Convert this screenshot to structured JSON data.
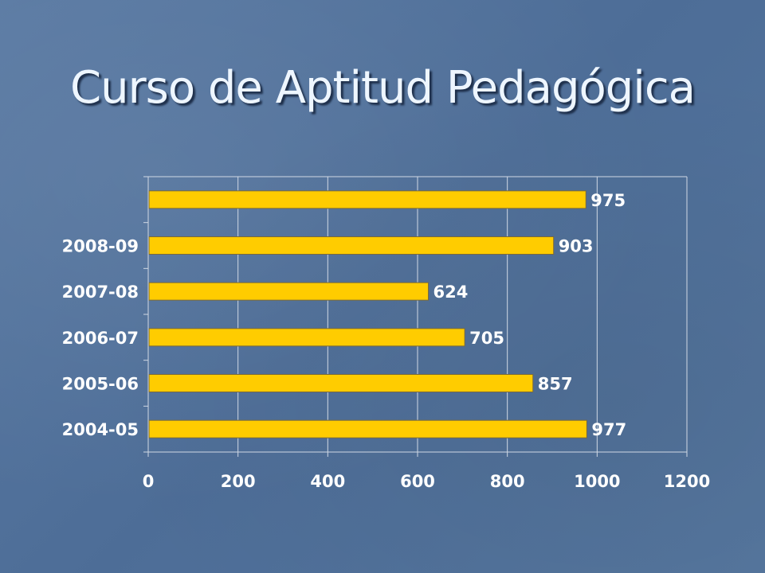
{
  "slide": {
    "title": "Curso de Aptitud Pedagógica"
  },
  "colors": {
    "bar_fill": "#ffcc00",
    "bar_stroke": "#7a6a3a",
    "gridline": "#d0d8e4",
    "text": "#ffffff",
    "background": "#4f709a"
  },
  "chart_data": {
    "type": "bar",
    "orientation": "horizontal",
    "categories": [
      "2004-05",
      "2005-06",
      "2006-07",
      "2007-08",
      "2008-09",
      ""
    ],
    "values": [
      977,
      857,
      705,
      624,
      903,
      975
    ],
    "data_labels": [
      "977",
      "857",
      "705",
      "624",
      "903",
      "975"
    ],
    "xlim": [
      0,
      1200
    ],
    "x_ticks": [
      "0",
      "200",
      "400",
      "600",
      "800",
      "1000",
      "1200"
    ],
    "x_tick_values": [
      0,
      200,
      400,
      600,
      800,
      1000,
      1200
    ],
    "grid": "vertical",
    "legend": "none",
    "title": "",
    "xlabel": "",
    "ylabel": ""
  }
}
